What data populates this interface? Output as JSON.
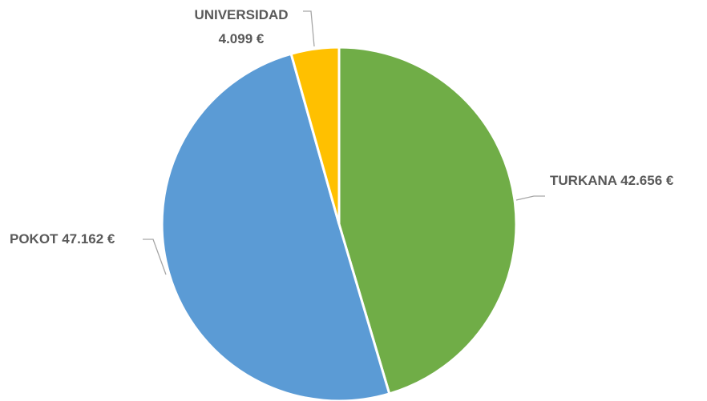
{
  "chart_data": {
    "type": "pie",
    "title": "",
    "slices": [
      {
        "name": "TURKANA",
        "value": 42656,
        "value_label": "42.656 €",
        "color": "#70AD47"
      },
      {
        "name": "POKOT",
        "value": 47162,
        "value_label": "47.162 €",
        "color": "#5B9BD5"
      },
      {
        "name": "UNIVERSIDAD",
        "value": 4099,
        "value_label": "4.099 €",
        "color": "#FFC000"
      }
    ],
    "start_angle_deg": 0,
    "direction": "clockwise",
    "legend": "none",
    "data_labels": "outside-with-leader-lines"
  }
}
